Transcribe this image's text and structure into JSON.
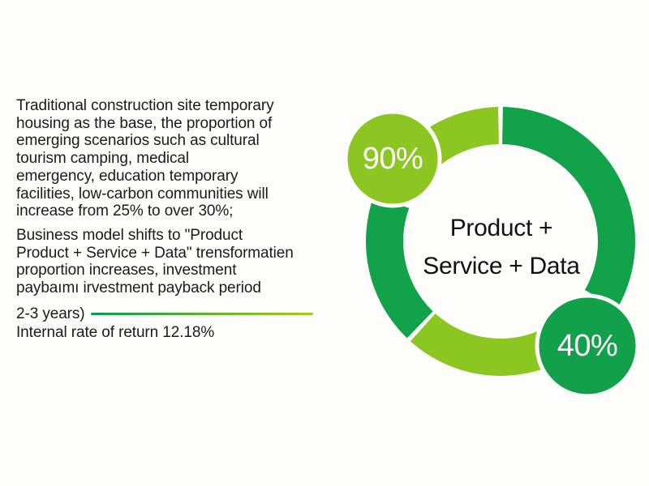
{
  "colors": {
    "dark_green": "#12a24a",
    "light_green": "#8cc721",
    "bubble_light": "#8dc523",
    "bubble_dark": "#13a04a",
    "line_start": "#0e984a",
    "line_end": "#a9c91b",
    "text": "#1b1b1b",
    "background": "#fdfdfc"
  },
  "left_text": {
    "paragraph_1": [
      "Traditional construction site temporary",
      "housing as the base, the proportion of",
      "emerging scenarios such as cultural",
      "tourism camping, medical",
      "emergency, education temporary",
      "facilities, low-carbon communities will",
      "increase from 25% to over 30%;"
    ],
    "paragraph_2": [
      "Business model shifts to \"Product",
      "Product + Service + Data\" trensformatien",
      "proportion increases, investment",
      "paybaımı irvestment payback period"
    ],
    "years_text": "2-3 years)",
    "irr_text": "Internal rate of return 12.18%"
  },
  "donut": {
    "center_label": [
      "Product +",
      "Service + Data"
    ],
    "segments": [
      {
        "name": "top-right",
        "color": "dark_green",
        "start_deg": 1,
        "end_deg": 120
      },
      {
        "name": "bottom",
        "color": "light_green",
        "start_deg": 135,
        "end_deg": 222
      },
      {
        "name": "left",
        "color": "dark_green",
        "start_deg": 224,
        "end_deg": 290
      },
      {
        "name": "top-left",
        "color": "light_green",
        "start_deg": 300,
        "end_deg": 359
      }
    ],
    "bubbles": [
      {
        "label": "90%",
        "color": "light_green"
      },
      {
        "label": "40%",
        "color": "dark_green"
      }
    ]
  }
}
